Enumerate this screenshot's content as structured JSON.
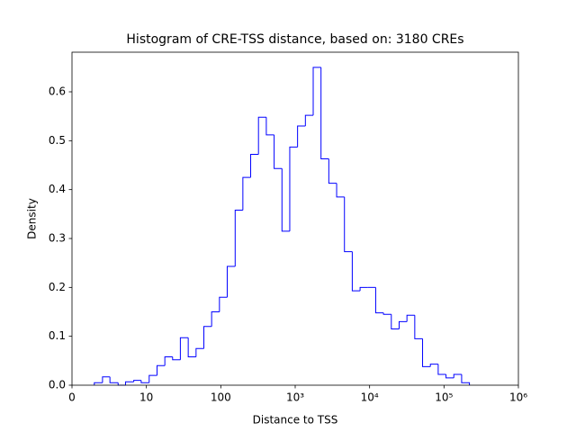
{
  "chart_data": {
    "type": "histogram",
    "title": "Histogram of CRE-TSS distance, based on: 3180 CREs",
    "x_label": "Distance to TSS",
    "y_label": "Density",
    "xscale": "symlog",
    "linthresh": 10,
    "color": "#0000ff",
    "bins": [
      3.0,
      4.1,
      5.1,
      6.2,
      7.2,
      8.3,
      9.3,
      10.9,
      13.9,
      17.7,
      22.5,
      28.6,
      36.5,
      46.5,
      59.2,
      75.3,
      95.9,
      122,
      156,
      198,
      252,
      321,
      409,
      521,
      664,
      845,
      1076,
      1371,
      1746,
      2223,
      2831,
      3606,
      4592,
      5848,
      7447,
      9484,
      12078,
      15382,
      19588,
      24946,
      31769,
      40458,
      51523,
      65615,
      83560,
      106414,
      135519,
      172584,
      219786
    ],
    "values": [
      0.005,
      0.017,
      0.005,
      0,
      0.007,
      0.01,
      0.005,
      0.02,
      0.04,
      0.058,
      0.052,
      0.097,
      0.058,
      0.075,
      0.12,
      0.15,
      0.18,
      0.243,
      0.358,
      0.425,
      0.472,
      0.548,
      0.512,
      0.443,
      0.315,
      0.487,
      0.53,
      0.552,
      0.65,
      0.463,
      0.413,
      0.385,
      0.273,
      0.193,
      0.2,
      0.2,
      0.148,
      0.145,
      0.115,
      0.13,
      0.143,
      0.095,
      0.038,
      0.043,
      0.022,
      0.015,
      0.022,
      0.005
    ],
    "xlim": [
      0,
      1000000
    ],
    "xticks": [
      0,
      10,
      100,
      {
        "value": 1000,
        "label": "10³"
      },
      {
        "value": 10000,
        "label": "10⁴"
      },
      {
        "value": 100000,
        "label": "10⁵"
      },
      {
        "value": 1000000,
        "label": "10⁶"
      }
    ],
    "ylim": [
      0,
      0.681
    ],
    "yticks": [
      {
        "value": 0,
        "label": "0.0"
      },
      0.1,
      0.2,
      0.3,
      0.4,
      0.5,
      0.6
    ]
  }
}
